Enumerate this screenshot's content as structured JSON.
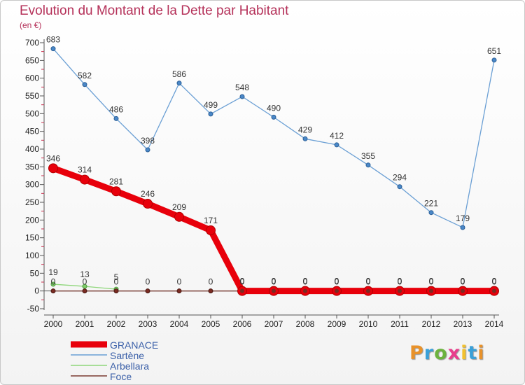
{
  "chart_data": {
    "type": "line",
    "title": "Evolution du Montant de la Dette par Habitant",
    "subtitle": "(en €)",
    "x": [
      "2000",
      "2001",
      "2002",
      "2003",
      "2004",
      "2005",
      "2006",
      "2007",
      "2008",
      "2009",
      "2010",
      "2011",
      "2012",
      "2013",
      "2014"
    ],
    "y_ticks": [
      -50,
      0,
      50,
      100,
      150,
      200,
      250,
      300,
      350,
      400,
      450,
      500,
      550,
      600,
      650,
      700
    ],
    "ylim": [
      -50,
      700
    ],
    "grid": false,
    "legend_position": "bottom-left",
    "series": [
      {
        "name": "GRANACE",
        "color": "#e8000b",
        "values": [
          346,
          314,
          281,
          246,
          209,
          171,
          0,
          0,
          0,
          0,
          0,
          0,
          0,
          0,
          0
        ],
        "labels": [
          "346",
          "314",
          "281",
          "246",
          "209",
          "171",
          "0",
          "0",
          "0",
          "0",
          "0",
          "0",
          "0",
          "0",
          "0"
        ]
      },
      {
        "name": "Sartène",
        "color": "#6a9fd4",
        "values": [
          683,
          582,
          486,
          398,
          586,
          499,
          548,
          490,
          429,
          412,
          355,
          294,
          221,
          179,
          651
        ],
        "labels": [
          "683",
          "582",
          "486",
          "398",
          "586",
          "499",
          "548",
          "490",
          "429",
          "412",
          "355",
          "294",
          "221",
          "179",
          "651"
        ]
      },
      {
        "name": "Arbellara",
        "color": "#8ed67a",
        "values": [
          19,
          13,
          5,
          null,
          null,
          null,
          null,
          null,
          null,
          null,
          null,
          null,
          null,
          null,
          null
        ],
        "labels": [
          "19",
          "13",
          "5"
        ]
      },
      {
        "name": "Foce",
        "color": "#7a3b32",
        "values": [
          0,
          0,
          0,
          0,
          0,
          0,
          0,
          0,
          0,
          0,
          0,
          0,
          0,
          0,
          0
        ],
        "labels": [
          "0",
          "0",
          "0",
          "0",
          "0",
          "0",
          "0",
          "0",
          "0",
          "0",
          "0",
          "0",
          "0",
          "0",
          "0"
        ]
      }
    ]
  },
  "legend": {
    "items": [
      {
        "label": "GRANACE"
      },
      {
        "label": "Sartène"
      },
      {
        "label": "Arbellara"
      },
      {
        "label": "Foce"
      }
    ]
  },
  "logo": {
    "text": "Proxiti",
    "colors": [
      "#e8922a",
      "#3aa0d8",
      "#6cb33e",
      "#e83e8c",
      "#f2c12e",
      "#3aa0d8",
      "#e8922a"
    ]
  }
}
